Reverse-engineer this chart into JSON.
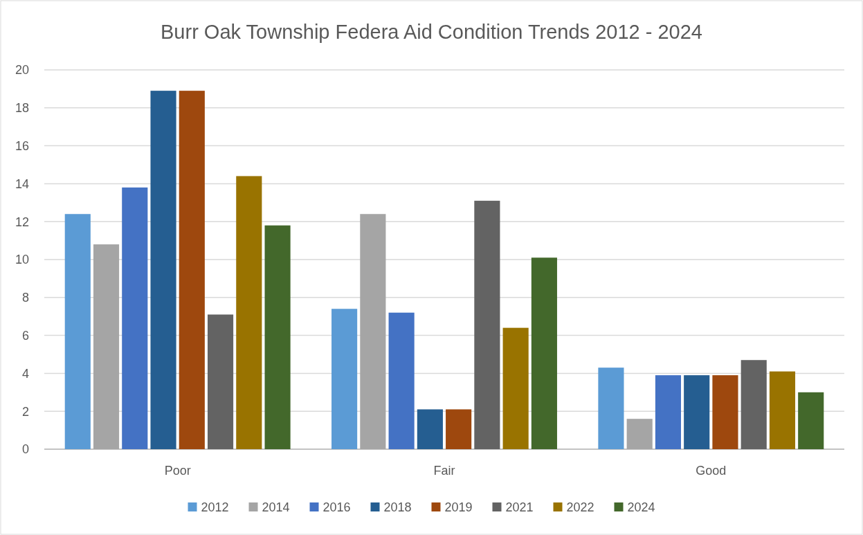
{
  "chart_data": {
    "type": "bar",
    "title": "Burr Oak Township Federa Aid Condition Trends 2012 - 2024",
    "categories": [
      "Poor",
      "Fair",
      "Good"
    ],
    "series": [
      {
        "name": "2012",
        "color": "#5b9bd5",
        "values": [
          12.4,
          7.4,
          4.3
        ]
      },
      {
        "name": "2014",
        "color": "#a5a5a5",
        "values": [
          10.8,
          12.4,
          1.6
        ]
      },
      {
        "name": "2016",
        "color": "#4472c4",
        "values": [
          13.8,
          7.2,
          3.9
        ]
      },
      {
        "name": "2018",
        "color": "#255e91",
        "values": [
          18.9,
          2.1,
          3.9
        ]
      },
      {
        "name": "2019",
        "color": "#9e480e",
        "values": [
          18.9,
          2.1,
          3.9
        ]
      },
      {
        "name": "2021",
        "color": "#636363",
        "values": [
          7.1,
          13.1,
          4.7
        ]
      },
      {
        "name": "2022",
        "color": "#997300",
        "values": [
          14.4,
          6.4,
          4.1
        ]
      },
      {
        "name": "2024",
        "color": "#43682b",
        "values": [
          11.8,
          10.1,
          3.0
        ]
      }
    ],
    "ylim": [
      0,
      20
    ],
    "yticks": [
      0,
      2,
      4,
      6,
      8,
      10,
      12,
      14,
      16,
      18,
      20
    ],
    "grid": "y",
    "legend": "bottom"
  }
}
